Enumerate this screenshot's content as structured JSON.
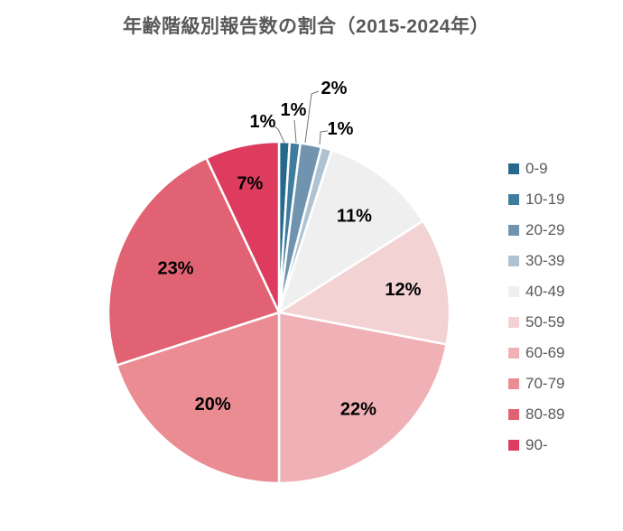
{
  "chart_data": {
    "type": "pie",
    "title": "年齢階級別報告数の割合（2015-2024年）",
    "categories": [
      "0-9",
      "10-19",
      "20-29",
      "30-39",
      "40-49",
      "50-59",
      "60-69",
      "70-79",
      "80-89",
      "90-"
    ],
    "values": [
      1,
      1,
      2,
      1,
      11,
      12,
      22,
      20,
      23,
      7
    ],
    "unit": "percent",
    "data_labels": [
      "1%",
      "1%",
      "2%",
      "1%",
      "11%",
      "12%",
      "22%",
      "20%",
      "23%",
      "7%"
    ],
    "colors": [
      "#27698C",
      "#3F7C9E",
      "#7094AF",
      "#AFC2D1",
      "#EFEFEF",
      "#F3D2D4",
      "#F0B1B6",
      "#EA8C92",
      "#E06273",
      "#DD3C5F"
    ],
    "start_angle_deg": 0,
    "direction": "clockwise",
    "legend_position": "right",
    "legend_entries": [
      "0-9",
      "10-19",
      "20-29",
      "30-39",
      "40-49",
      "50-59",
      "60-69",
      "70-79",
      "80-89",
      "90-"
    ],
    "title_color": "#595959",
    "legend_text_color": "#595959",
    "data_label_color": "#000000",
    "leader_line_color": "#757575",
    "slice_border_color": "#ffffff",
    "background_color": "#ffffff"
  }
}
